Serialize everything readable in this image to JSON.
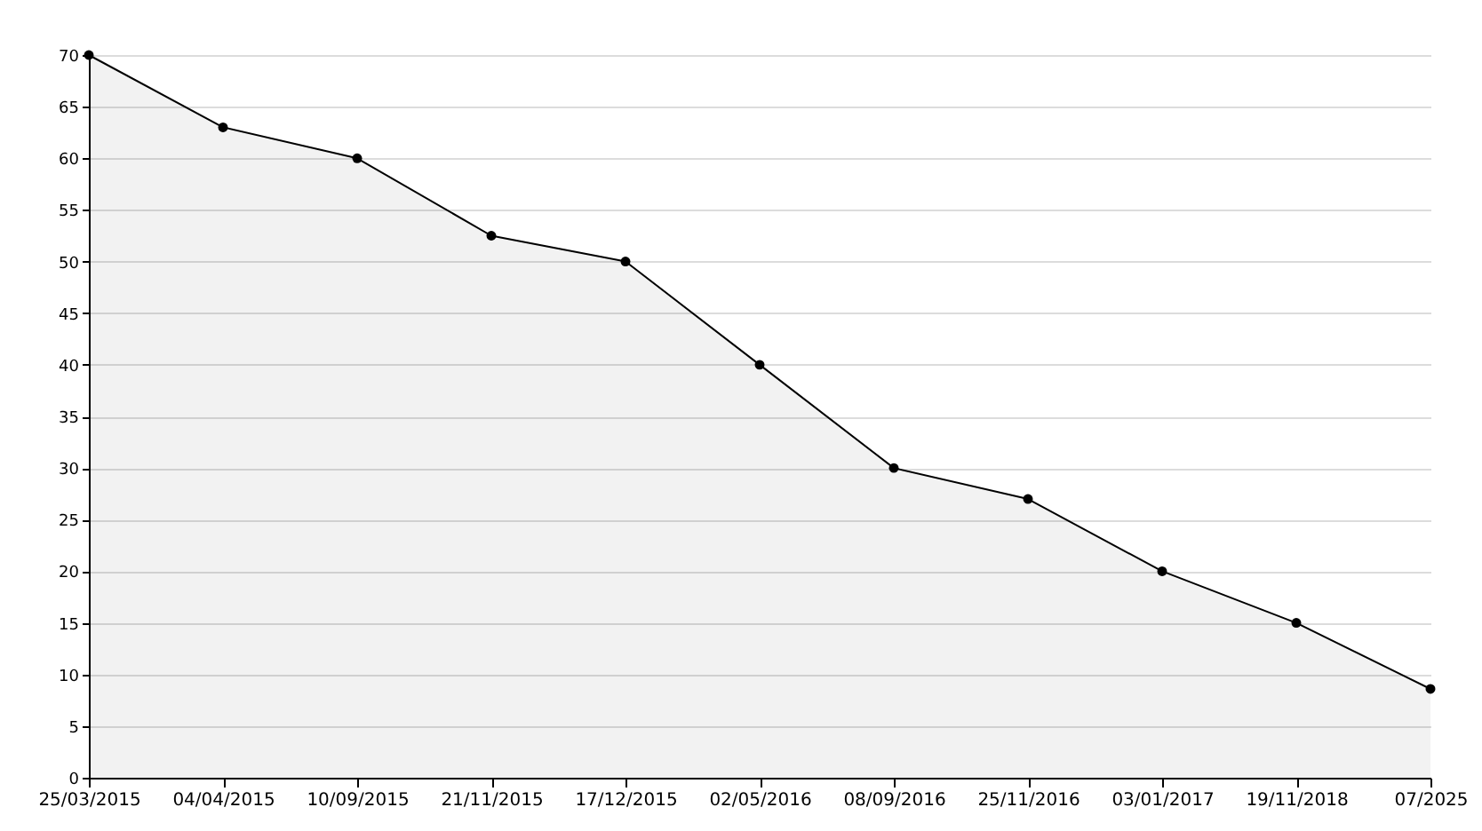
{
  "chart_data": {
    "type": "area",
    "categories": [
      "25/03/2015",
      "04/04/2015",
      "10/09/2015",
      "21/11/2015",
      "17/12/2015",
      "02/05/2016",
      "08/09/2016",
      "25/11/2016",
      "03/01/2017",
      "19/11/2018",
      "07/2025"
    ],
    "series": [
      {
        "color": "#000000",
        "values": [
          70,
          63,
          60,
          52.5,
          50,
          40,
          30,
          27,
          20,
          15,
          8.6
        ]
      }
    ],
    "ylim": [
      0,
      70
    ],
    "yticks": [
      0,
      5,
      10,
      15,
      20,
      25,
      30,
      35,
      40,
      45,
      50,
      55,
      60,
      65,
      70
    ],
    "grid": "y",
    "marker": "circle",
    "line_style": "solid"
  }
}
